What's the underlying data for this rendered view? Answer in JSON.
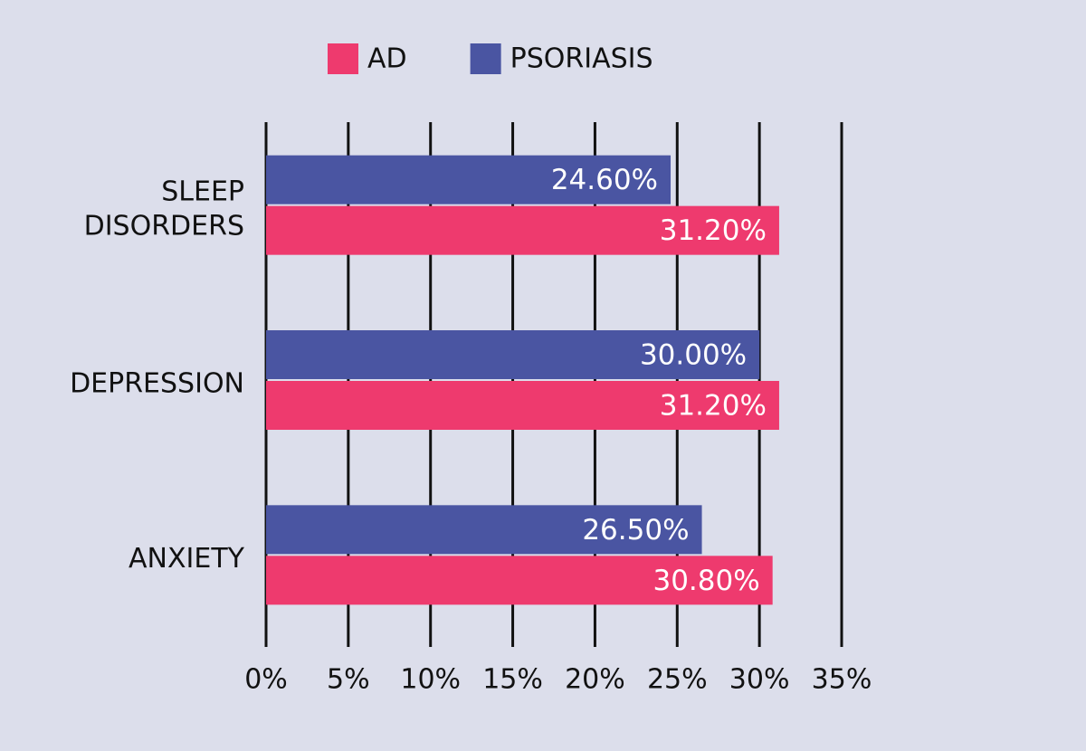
{
  "chart_data": {
    "type": "bar",
    "orientation": "horizontal",
    "categories": [
      "SLEEP DISORDERS",
      "DEPRESSION",
      "ANXIETY"
    ],
    "series": [
      {
        "name": "AD",
        "color": "#ee3a6e",
        "values": [
          31.2,
          31.2,
          30.8
        ],
        "value_labels": [
          "31.20%",
          "31.20%",
          "30.80%"
        ]
      },
      {
        "name": "PSORIASIS",
        "color": "#4a55a2",
        "values": [
          24.6,
          30.0,
          26.5
        ],
        "value_labels": [
          "24.60%",
          "30.00%",
          "26.50%"
        ]
      }
    ],
    "xlim": [
      0,
      35
    ],
    "xticks": [
      {
        "value": 0,
        "label": "0%"
      },
      {
        "value": 5,
        "label": "5%"
      },
      {
        "value": 10,
        "label": "10%"
      },
      {
        "value": 15,
        "label": "15%"
      },
      {
        "value": 20,
        "label": "20%"
      },
      {
        "value": 25,
        "label": "25%"
      },
      {
        "value": 30,
        "label": "30%"
      },
      {
        "value": 35,
        "label": "35%"
      }
    ],
    "grid": true,
    "legend": "top"
  }
}
